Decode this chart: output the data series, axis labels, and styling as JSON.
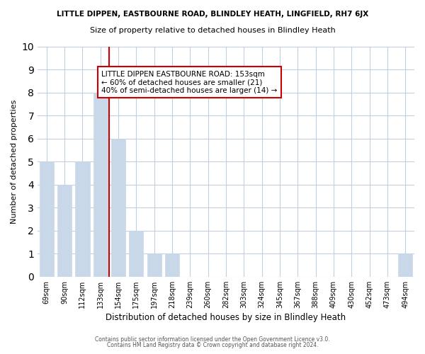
{
  "title": "LITTLE DIPPEN, EASTBOURNE ROAD, BLINDLEY HEATH, LINGFIELD, RH7 6JX",
  "subtitle": "Size of property relative to detached houses in Blindley Heath",
  "xlabel": "Distribution of detached houses by size in Blindley Heath",
  "ylabel": "Number of detached properties",
  "bar_labels": [
    "69sqm",
    "90sqm",
    "112sqm",
    "133sqm",
    "154sqm",
    "175sqm",
    "197sqm",
    "218sqm",
    "239sqm",
    "260sqm",
    "282sqm",
    "303sqm",
    "324sqm",
    "345sqm",
    "367sqm",
    "388sqm",
    "409sqm",
    "430sqm",
    "452sqm",
    "473sqm",
    "494sqm"
  ],
  "bar_values": [
    5,
    4,
    5,
    8,
    6,
    2,
    1,
    1,
    0,
    0,
    0,
    0,
    0,
    0,
    0,
    0,
    0,
    0,
    0,
    0,
    1
  ],
  "bar_color": "#c8d8e8",
  "vline_x": 3.5,
  "vline_color": "#cc0000",
  "ylim": [
    0,
    10
  ],
  "yticks": [
    0,
    1,
    2,
    3,
    4,
    5,
    6,
    7,
    8,
    9,
    10
  ],
  "annotation_text": "LITTLE DIPPEN EASTBOURNE ROAD: 153sqm\n← 60% of detached houses are smaller (21)\n40% of semi-detached houses are larger (14) →",
  "annotation_box_color": "#ffffff",
  "annotation_box_edge": "#cc0000",
  "footer1": "Contains HM Land Registry data © Crown copyright and database right 2024.",
  "footer2": "Contains public sector information licensed under the Open Government Licence v3.0.",
  "bg_color": "#ffffff",
  "grid_color": "#c0d0e0"
}
